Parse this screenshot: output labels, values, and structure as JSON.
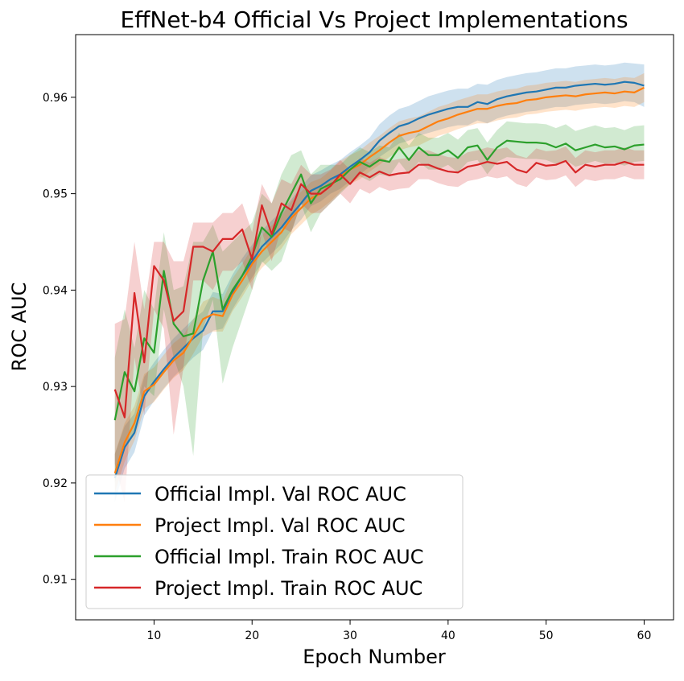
{
  "chart_data": {
    "type": "line",
    "title": "EffNet-b4 Official Vs Project Implementations",
    "xlabel": "Epoch Number",
    "ylabel": "ROC AUC",
    "xlim": [
      2,
      63
    ],
    "ylim": [
      0.9058,
      0.9665
    ],
    "x_ticks": [
      10,
      20,
      30,
      40,
      50,
      60
    ],
    "y_ticks": [
      0.91,
      0.92,
      0.93,
      0.94,
      0.95,
      0.96
    ],
    "x_tick_labels": [
      "10",
      "20",
      "30",
      "40",
      "50",
      "60"
    ],
    "y_tick_labels": [
      "0.91",
      "0.92",
      "0.93",
      "0.94",
      "0.95",
      "0.96"
    ],
    "grid": false,
    "legend_position": "lower-left",
    "x": [
      6,
      7,
      8,
      9,
      10,
      11,
      12,
      13,
      14,
      15,
      16,
      17,
      18,
      19,
      20,
      21,
      22,
      23,
      24,
      25,
      26,
      27,
      28,
      29,
      30,
      31,
      32,
      33,
      34,
      35,
      36,
      37,
      38,
      39,
      40,
      41,
      42,
      43,
      44,
      45,
      46,
      47,
      48,
      49,
      50,
      51,
      52,
      53,
      54,
      55,
      56,
      57,
      58,
      59,
      60
    ],
    "series": [
      {
        "name": "Official Impl. Val ROC AUC",
        "color": "#1f77b4",
        "values": [
          0.9205,
          0.9237,
          0.9252,
          0.929,
          0.9305,
          0.9318,
          0.933,
          0.934,
          0.935,
          0.9358,
          0.9378,
          0.9378,
          0.9398,
          0.9415,
          0.943,
          0.9445,
          0.9455,
          0.9465,
          0.9478,
          0.949,
          0.9503,
          0.9508,
          0.9515,
          0.952,
          0.9528,
          0.9535,
          0.9543,
          0.9555,
          0.9563,
          0.957,
          0.9573,
          0.9578,
          0.9582,
          0.9585,
          0.9588,
          0.959,
          0.959,
          0.9595,
          0.9593,
          0.9598,
          0.9601,
          0.9603,
          0.9605,
          0.9606,
          0.9608,
          0.961,
          0.961,
          0.9612,
          0.9613,
          0.9614,
          0.9613,
          0.9614,
          0.9616,
          0.9615,
          0.9612
        ],
        "band_lower": [
          0.918,
          0.9215,
          0.9232,
          0.927,
          0.9285,
          0.9298,
          0.931,
          0.932,
          0.933,
          0.9338,
          0.9358,
          0.936,
          0.938,
          0.9397,
          0.9413,
          0.9428,
          0.9438,
          0.9448,
          0.9462,
          0.9473,
          0.9487,
          0.9492,
          0.95,
          0.9505,
          0.9513,
          0.952,
          0.9528,
          0.9538,
          0.9545,
          0.9552,
          0.9555,
          0.956,
          0.9563,
          0.9566,
          0.9569,
          0.9571,
          0.9571,
          0.9576,
          0.9573,
          0.9578,
          0.9581,
          0.9583,
          0.9585,
          0.9586,
          0.9588,
          0.959,
          0.959,
          0.9592,
          0.9593,
          0.9594,
          0.9593,
          0.9594,
          0.9596,
          0.9595,
          0.959
        ],
        "band_upper": [
          0.923,
          0.9259,
          0.9272,
          0.931,
          0.9325,
          0.9338,
          0.935,
          0.936,
          0.937,
          0.9378,
          0.9398,
          0.9396,
          0.9416,
          0.9433,
          0.9447,
          0.9462,
          0.9472,
          0.9482,
          0.9494,
          0.9507,
          0.9519,
          0.9524,
          0.953,
          0.9535,
          0.9543,
          0.955,
          0.9558,
          0.9572,
          0.9581,
          0.9588,
          0.9591,
          0.9596,
          0.9601,
          0.9604,
          0.9607,
          0.9609,
          0.9609,
          0.9614,
          0.9613,
          0.9618,
          0.9621,
          0.9623,
          0.9625,
          0.9626,
          0.9628,
          0.963,
          0.963,
          0.9632,
          0.9633,
          0.9634,
          0.9633,
          0.9634,
          0.9636,
          0.9635,
          0.9634
        ]
      },
      {
        "name": "Project Impl. Val ROC AUC",
        "color": "#ff7f0e",
        "values": [
          0.921,
          0.9242,
          0.9262,
          0.9295,
          0.9302,
          0.9315,
          0.9327,
          0.9335,
          0.9352,
          0.937,
          0.9375,
          0.9373,
          0.9395,
          0.941,
          0.9427,
          0.944,
          0.945,
          0.946,
          0.9475,
          0.9485,
          0.9495,
          0.95,
          0.9508,
          0.9518,
          0.9525,
          0.953,
          0.9538,
          0.9545,
          0.9553,
          0.956,
          0.9563,
          0.9565,
          0.957,
          0.9575,
          0.9578,
          0.9582,
          0.9585,
          0.9588,
          0.9588,
          0.9591,
          0.9593,
          0.9594,
          0.9597,
          0.9598,
          0.96,
          0.9601,
          0.9602,
          0.9601,
          0.9603,
          0.9604,
          0.9605,
          0.9604,
          0.9606,
          0.9605,
          0.961
        ],
        "band_lower": [
          0.919,
          0.9222,
          0.9244,
          0.9277,
          0.9284,
          0.9297,
          0.9309,
          0.9317,
          0.9334,
          0.9352,
          0.9357,
          0.9357,
          0.9378,
          0.9393,
          0.941,
          0.9423,
          0.9433,
          0.9443,
          0.9458,
          0.9468,
          0.9478,
          0.9484,
          0.9492,
          0.9502,
          0.951,
          0.9515,
          0.9523,
          0.953,
          0.9538,
          0.9545,
          0.9548,
          0.955,
          0.9555,
          0.956,
          0.9563,
          0.9567,
          0.957,
          0.9573,
          0.9573,
          0.9576,
          0.9578,
          0.9579,
          0.9582,
          0.9583,
          0.9585,
          0.9586,
          0.9587,
          0.9586,
          0.9588,
          0.9589,
          0.959,
          0.9589,
          0.9591,
          0.959,
          0.9595
        ],
        "band_upper": [
          0.923,
          0.9262,
          0.928,
          0.9313,
          0.932,
          0.9333,
          0.9345,
          0.9353,
          0.937,
          0.9388,
          0.9393,
          0.9389,
          0.9412,
          0.9427,
          0.9444,
          0.9457,
          0.9467,
          0.9477,
          0.9492,
          0.9502,
          0.9512,
          0.9516,
          0.9524,
          0.9534,
          0.954,
          0.9545,
          0.9553,
          0.956,
          0.9568,
          0.9575,
          0.9578,
          0.958,
          0.9585,
          0.959,
          0.9593,
          0.9597,
          0.96,
          0.9603,
          0.9603,
          0.9606,
          0.9608,
          0.9609,
          0.9612,
          0.9613,
          0.9615,
          0.9616,
          0.9617,
          0.9616,
          0.9618,
          0.9619,
          0.962,
          0.9619,
          0.9621,
          0.962,
          0.9625
        ]
      },
      {
        "name": "Official Impl. Train ROC AUC",
        "color": "#2ca02c",
        "values": [
          0.9265,
          0.9315,
          0.9295,
          0.935,
          0.9335,
          0.942,
          0.9365,
          0.9352,
          0.9355,
          0.941,
          0.944,
          0.938,
          0.94,
          0.9415,
          0.9435,
          0.9465,
          0.9455,
          0.948,
          0.95,
          0.952,
          0.949,
          0.9505,
          0.951,
          0.9515,
          0.9525,
          0.9533,
          0.9528,
          0.9535,
          0.9533,
          0.9548,
          0.9535,
          0.9548,
          0.954,
          0.954,
          0.9545,
          0.9537,
          0.9548,
          0.955,
          0.9535,
          0.9548,
          0.9555,
          0.9554,
          0.9553,
          0.9553,
          0.9552,
          0.9548,
          0.9552,
          0.9545,
          0.9548,
          0.9551,
          0.9548,
          0.9549,
          0.9546,
          0.955,
          0.9551
        ],
        "band_lower": [
          0.92,
          0.924,
          0.925,
          0.93,
          0.929,
          0.938,
          0.933,
          0.93,
          0.9228,
          0.936,
          0.939,
          0.9303,
          0.934,
          0.937,
          0.94,
          0.943,
          0.942,
          0.943,
          0.946,
          0.949,
          0.946,
          0.948,
          0.949,
          0.95,
          0.951,
          0.9518,
          0.9513,
          0.952,
          0.9518,
          0.9533,
          0.952,
          0.9533,
          0.9525,
          0.9525,
          0.953,
          0.9522,
          0.9533,
          0.9535,
          0.952,
          0.9533,
          0.9538,
          0.9537,
          0.9536,
          0.9536,
          0.9535,
          0.9531,
          0.9535,
          0.9528,
          0.9531,
          0.9534,
          0.9531,
          0.9532,
          0.9529,
          0.9533,
          0.9534
        ],
        "band_upper": [
          0.933,
          0.938,
          0.934,
          0.94,
          0.938,
          0.946,
          0.94,
          0.9404,
          0.945,
          0.945,
          0.9468,
          0.944,
          0.945,
          0.946,
          0.947,
          0.95,
          0.949,
          0.952,
          0.954,
          0.9545,
          0.952,
          0.953,
          0.953,
          0.953,
          0.954,
          0.9548,
          0.9543,
          0.955,
          0.9548,
          0.9563,
          0.955,
          0.9563,
          0.9558,
          0.9558,
          0.9563,
          0.9556,
          0.9566,
          0.9568,
          0.9553,
          0.9566,
          0.9575,
          0.9574,
          0.9573,
          0.9573,
          0.9572,
          0.9568,
          0.9572,
          0.9565,
          0.9568,
          0.9571,
          0.9568,
          0.9569,
          0.9566,
          0.957,
          0.9571
        ]
      },
      {
        "name": "Project Impl. Train ROC AUC",
        "color": "#d62728",
        "values": [
          0.9297,
          0.9268,
          0.9397,
          0.9325,
          0.9425,
          0.941,
          0.9368,
          0.9378,
          0.9445,
          0.9445,
          0.944,
          0.9453,
          0.9453,
          0.9463,
          0.9432,
          0.9488,
          0.9458,
          0.949,
          0.9483,
          0.951,
          0.95,
          0.95,
          0.9508,
          0.952,
          0.951,
          0.9522,
          0.9517,
          0.9523,
          0.9519,
          0.9521,
          0.9522,
          0.953,
          0.953,
          0.9526,
          0.9523,
          0.9522,
          0.9528,
          0.953,
          0.9533,
          0.9531,
          0.9533,
          0.9525,
          0.9522,
          0.9532,
          0.9529,
          0.953,
          0.9534,
          0.9522,
          0.953,
          0.9528,
          0.953,
          0.953,
          0.9533,
          0.953,
          0.953
        ],
        "band_lower": [
          0.922,
          0.918,
          0.933,
          0.927,
          0.938,
          0.936,
          0.925,
          0.932,
          0.941,
          0.941,
          0.94,
          0.942,
          0.942,
          0.943,
          0.94,
          0.946,
          0.943,
          0.9465,
          0.946,
          0.949,
          0.948,
          0.948,
          0.949,
          0.95,
          0.949,
          0.9505,
          0.95,
          0.9507,
          0.9503,
          0.9505,
          0.9506,
          0.9515,
          0.9515,
          0.9511,
          0.9508,
          0.9507,
          0.9513,
          0.9515,
          0.9518,
          0.9516,
          0.9518,
          0.951,
          0.9507,
          0.9517,
          0.9514,
          0.9515,
          0.9519,
          0.9507,
          0.9515,
          0.9513,
          0.9515,
          0.9515,
          0.9518,
          0.9515,
          0.9515
        ],
        "band_upper": [
          0.9365,
          0.937,
          0.945,
          0.938,
          0.945,
          0.945,
          0.943,
          0.943,
          0.947,
          0.947,
          0.947,
          0.948,
          0.948,
          0.949,
          0.946,
          0.951,
          0.949,
          0.9515,
          0.951,
          0.953,
          0.952,
          0.952,
          0.9525,
          0.9535,
          0.9525,
          0.9537,
          0.9532,
          0.9538,
          0.9534,
          0.9536,
          0.9537,
          0.9545,
          0.9545,
          0.9541,
          0.9538,
          0.9537,
          0.9543,
          0.9545,
          0.9548,
          0.9546,
          0.9548,
          0.954,
          0.9537,
          0.9547,
          0.9544,
          0.9545,
          0.9549,
          0.9537,
          0.9545,
          0.9543,
          0.9545,
          0.9545,
          0.9548,
          0.9545,
          0.9545
        ]
      }
    ]
  }
}
